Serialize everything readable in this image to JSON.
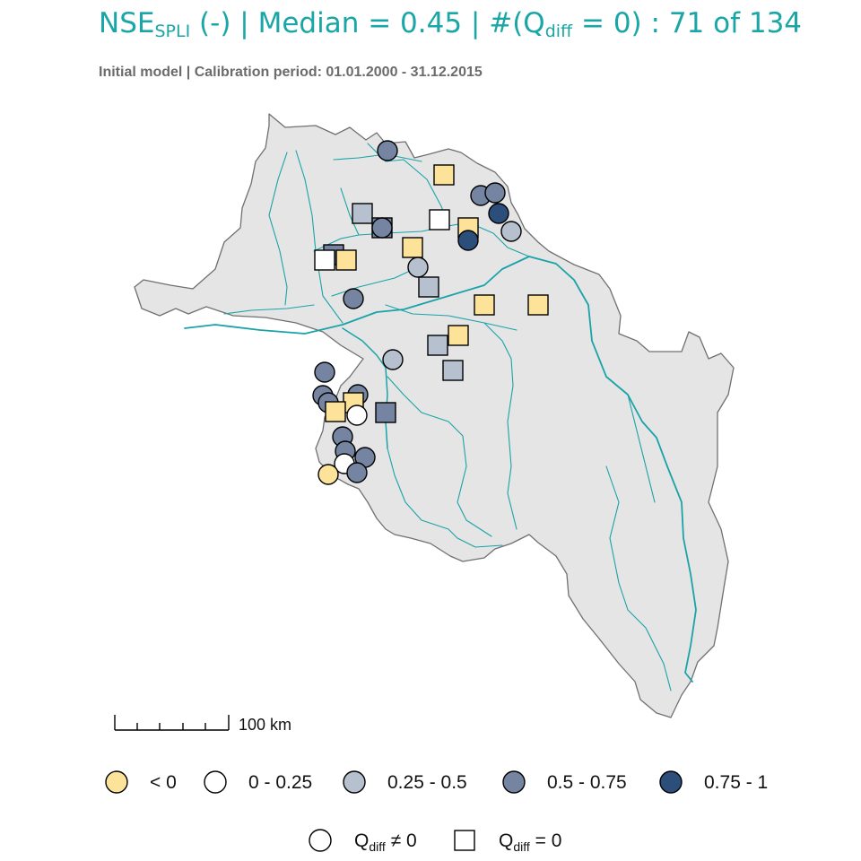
{
  "title": {
    "metric": "NSE",
    "metric_sub": "SPLI",
    "unit": "(-)",
    "sep1": "|",
    "median_text": "Median = 0.45",
    "sep2": "|",
    "count_prefix": "#(Q",
    "count_sub": "diff",
    "count_mid": " = 0) : ",
    "count_value": "71 of 134"
  },
  "subtitle": "Initial model | Calibration period: 01.01.2000 - 31.12.2015",
  "scalebar": {
    "label": "100 km"
  },
  "colors": {
    "basin_fill": "#e5e5e5",
    "basin_stroke": "#707070",
    "river": "#19a3a8",
    "title": "#1aa6a6",
    "lt0": "#fde39a",
    "0-0.25": "#ffffff",
    "0.25-0.5": "#b6c0cf",
    "0.5-0.75": "#7584a0",
    "0.75-1": "#2c4e7a"
  },
  "legend_classes": [
    {
      "key": "lt0",
      "label": "< 0"
    },
    {
      "key": "0-0.25",
      "label": "0 - 0.25"
    },
    {
      "key": "0.25-0.5",
      "label": "0.25 - 0.5"
    },
    {
      "key": "0.5-0.75",
      "label": "0.5 - 0.75"
    },
    {
      "key": "0.75-1",
      "label": "0.75 - 1"
    }
  ],
  "legend_shapes": [
    {
      "shape": "circle",
      "prefix": "Q",
      "sub": "diff",
      "suffix": " ≠ 0"
    },
    {
      "shape": "square",
      "prefix": "Q",
      "sub": "diff",
      "suffix": " = 0"
    }
  ],
  "stations": [
    {
      "id": 1,
      "shape": "circle",
      "class": "0.5-0.75"
    },
    {
      "id": 2,
      "shape": "square",
      "class": "lt0"
    },
    {
      "id": 3,
      "shape": "circle",
      "class": "0.5-0.75"
    },
    {
      "id": 4,
      "shape": "circle",
      "class": "0.5-0.75"
    },
    {
      "id": 5,
      "shape": "circle",
      "class": "0.75-1"
    },
    {
      "id": 6,
      "shape": "square",
      "class": "0.25-0.5"
    },
    {
      "id": 7,
      "shape": "square",
      "class": "0.5-0.75"
    },
    {
      "id": 8,
      "shape": "circle",
      "class": "0.5-0.75"
    },
    {
      "id": 9,
      "shape": "square",
      "class": "0-0.25"
    },
    {
      "id": 10,
      "shape": "square",
      "class": "lt0"
    },
    {
      "id": 11,
      "shape": "circle",
      "class": "0.75-1"
    },
    {
      "id": 12,
      "shape": "circle",
      "class": "0.25-0.5"
    },
    {
      "id": 13,
      "shape": "square",
      "class": "lt0"
    },
    {
      "id": 14,
      "shape": "square",
      "class": "0.5-0.75"
    },
    {
      "id": 15,
      "shape": "square",
      "class": "0-0.25"
    },
    {
      "id": 16,
      "shape": "square",
      "class": "lt0"
    },
    {
      "id": 17,
      "shape": "circle",
      "class": "0.25-0.5"
    },
    {
      "id": 18,
      "shape": "square",
      "class": "0.25-0.5"
    },
    {
      "id": 19,
      "shape": "circle",
      "class": "0.5-0.75"
    },
    {
      "id": 20,
      "shape": "square",
      "class": "lt0"
    },
    {
      "id": 21,
      "shape": "square",
      "class": "lt0"
    },
    {
      "id": 22,
      "shape": "square",
      "class": "lt0"
    },
    {
      "id": 23,
      "shape": "square",
      "class": "0.25-0.5"
    },
    {
      "id": 24,
      "shape": "circle",
      "class": "0.25-0.5"
    },
    {
      "id": 25,
      "shape": "square",
      "class": "0.25-0.5"
    },
    {
      "id": 26,
      "shape": "circle",
      "class": "0.5-0.75"
    },
    {
      "id": 27,
      "shape": "circle",
      "class": "0.5-0.75"
    },
    {
      "id": 28,
      "shape": "circle",
      "class": "0.5-0.75"
    },
    {
      "id": 29,
      "shape": "circle",
      "class": "0.5-0.75"
    },
    {
      "id": 30,
      "shape": "square",
      "class": "lt0"
    },
    {
      "id": 31,
      "shape": "square",
      "class": "lt0"
    },
    {
      "id": 32,
      "shape": "circle",
      "class": "0-0.25"
    },
    {
      "id": 33,
      "shape": "square",
      "class": "0.5-0.75"
    },
    {
      "id": 34,
      "shape": "circle",
      "class": "0.5-0.75"
    },
    {
      "id": 35,
      "shape": "circle",
      "class": "0.5-0.75"
    },
    {
      "id": 36,
      "shape": "circle",
      "class": "0.5-0.75"
    },
    {
      "id": 37,
      "shape": "circle",
      "class": "0-0.25"
    },
    {
      "id": 38,
      "shape": "circle",
      "class": "lt0"
    },
    {
      "id": 39,
      "shape": "circle",
      "class": "0.5-0.75"
    }
  ]
}
